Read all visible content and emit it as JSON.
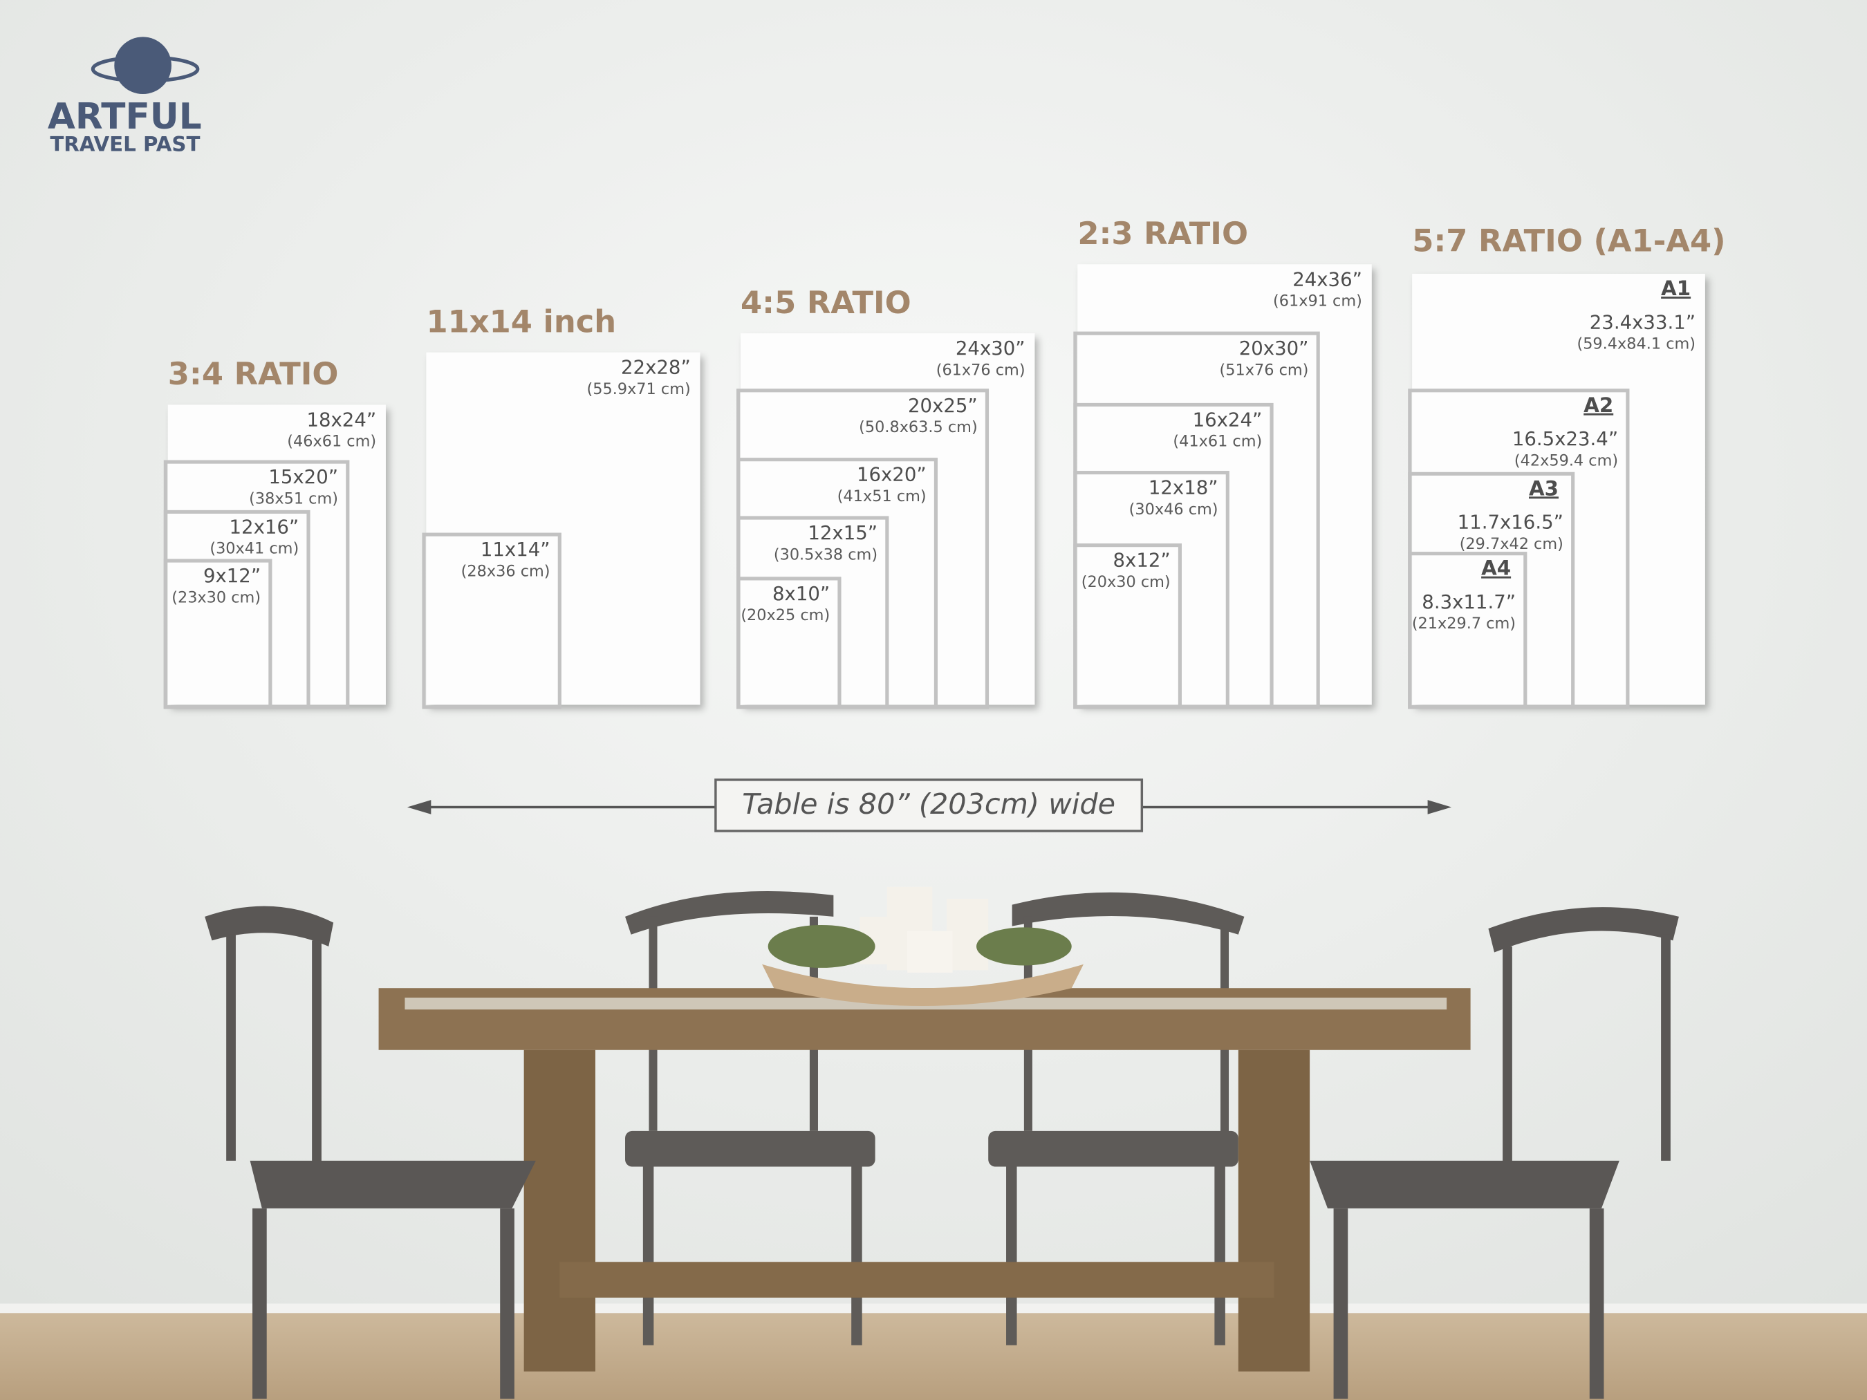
{
  "brand": {
    "name": "ARTFUL",
    "tagline": "TRAVEL PAST"
  },
  "groups": [
    {
      "title": "3:4 RATIO",
      "sizes": [
        {
          "inches": "18x24”",
          "cm": "(46x61 cm)"
        },
        {
          "inches": "15x20”",
          "cm": "(38x51 cm)"
        },
        {
          "inches": "12x16”",
          "cm": "(30x41 cm)"
        },
        {
          "inches": "9x12”",
          "cm": "(23x30 cm)"
        }
      ]
    },
    {
      "title": "11x14 inch",
      "sizes": [
        {
          "inches": "22x28”",
          "cm": "(55.9x71 cm)"
        },
        {
          "inches": "11x14”",
          "cm": "(28x36 cm)"
        }
      ]
    },
    {
      "title": "4:5 RATIO",
      "sizes": [
        {
          "inches": "24x30”",
          "cm": "(61x76 cm)"
        },
        {
          "inches": "20x25”",
          "cm": "(50.8x63.5 cm)"
        },
        {
          "inches": "16x20”",
          "cm": "(41x51 cm)"
        },
        {
          "inches": "12x15”",
          "cm": "(30.5x38 cm)"
        },
        {
          "inches": "8x10”",
          "cm": "(20x25 cm)"
        }
      ]
    },
    {
      "title": "2:3 RATIO",
      "sizes": [
        {
          "inches": "24x36”",
          "cm": "(61x91 cm)"
        },
        {
          "inches": "20x30”",
          "cm": "(51x76 cm)"
        },
        {
          "inches": "16x24”",
          "cm": "(41x61 cm)"
        },
        {
          "inches": "12x18”",
          "cm": "(30x46 cm)"
        },
        {
          "inches": "8x12”",
          "cm": "(20x30 cm)"
        }
      ]
    },
    {
      "title": "5:7 RATIO (A1-A4)",
      "sizes": [
        {
          "name": "A1",
          "inches": "23.4x33.1”",
          "cm": "(59.4x84.1 cm)"
        },
        {
          "name": "A2",
          "inches": "16.5x23.4”",
          "cm": "(42x59.4 cm)"
        },
        {
          "name": "A3",
          "inches": "11.7x16.5”",
          "cm": "(29.7x42 cm)"
        },
        {
          "name": "A4",
          "inches": "8.3x11.7”",
          "cm": "(21x29.7 cm)"
        }
      ]
    }
  ],
  "table_note": "Table is 80” (203cm) wide"
}
